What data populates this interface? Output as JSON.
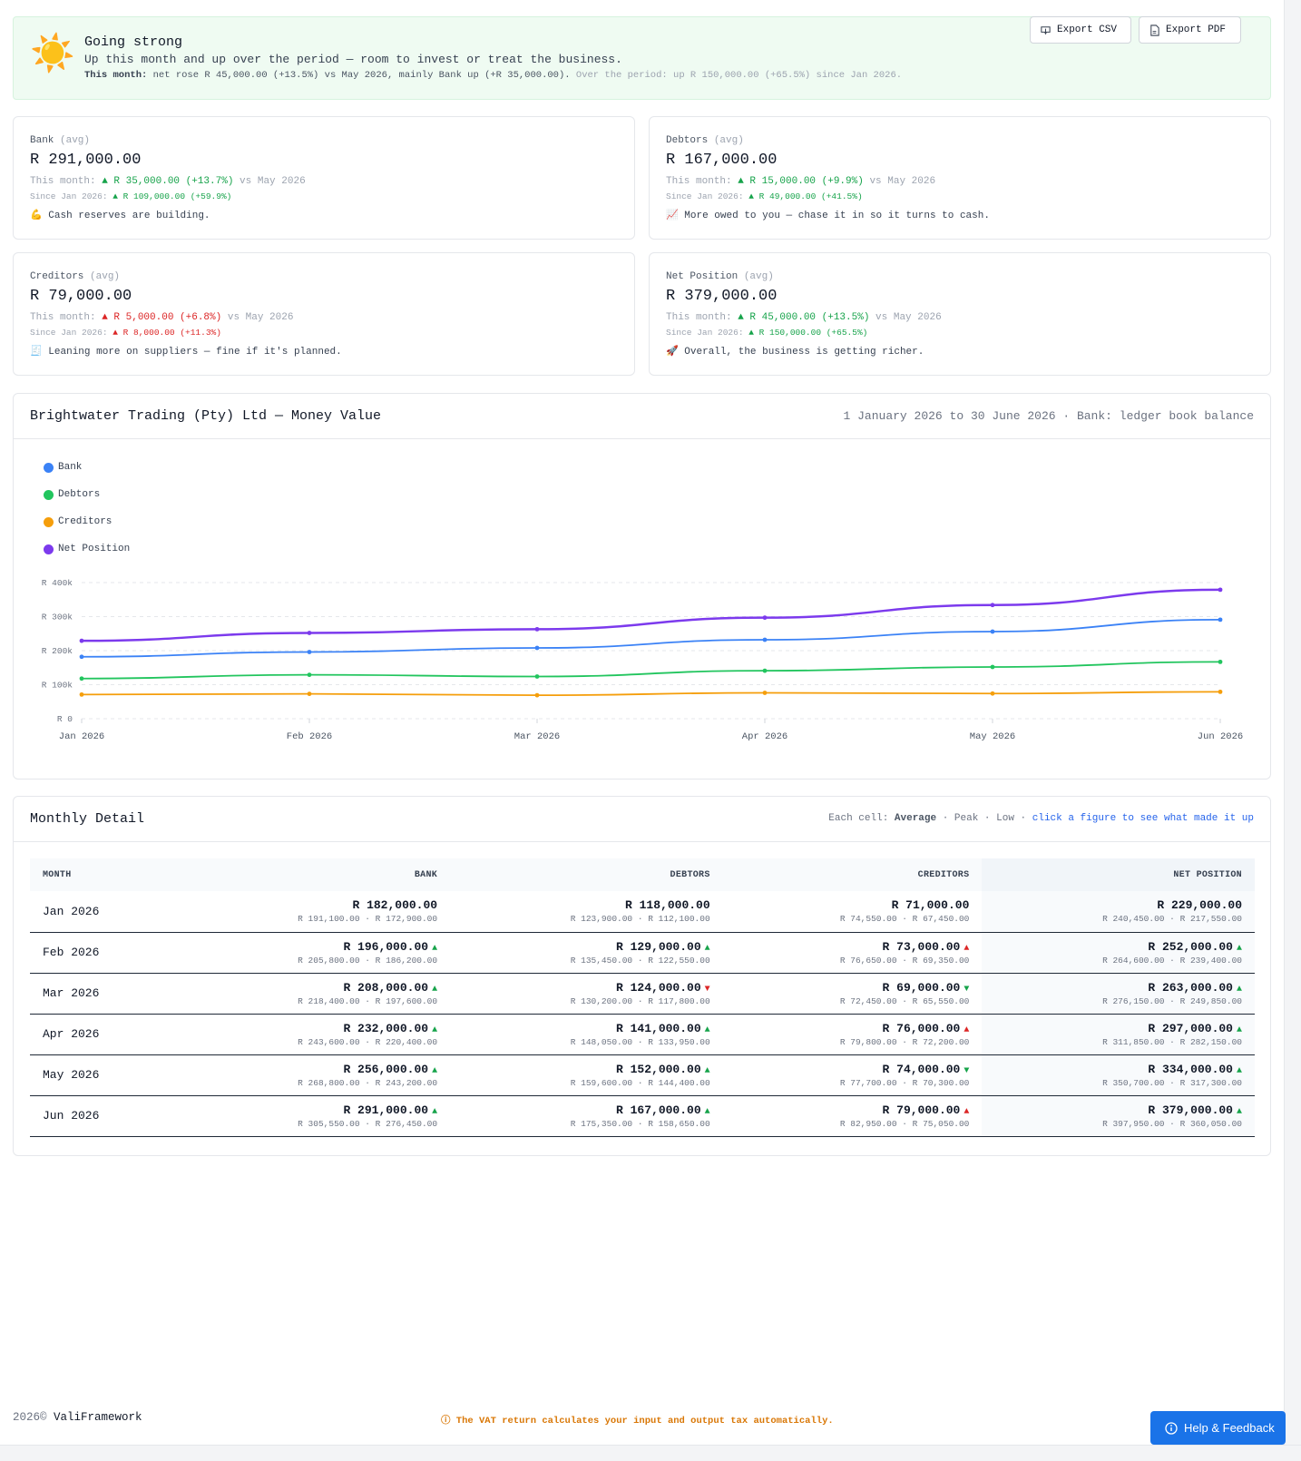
{
  "banner": {
    "icon": "sun-icon",
    "title": "Going strong",
    "subtitle": "Up this month and up over the period — room to invest or treat the business.",
    "detail_label": "This month:",
    "detail_text": " net rose R 45,000.00 (+13.5%) vs May 2026, mainly Bank up (+R 35,000.00).",
    "detail_period": " Over the period: up R 150,000.00 (+65.5%) since Jan 2026.",
    "export_csv": "Export CSV",
    "export_pdf": "Export PDF"
  },
  "cards": [
    {
      "label": "Bank",
      "label_suffix": " (avg)",
      "value": "R 291,000.00",
      "month_prefix": "This month: ",
      "month_change": "▲ R 35,000.00 (+13.7%)",
      "month_suffix": " vs May 2026",
      "month_dir": "up",
      "since_prefix": "Since Jan 2026: ",
      "since_change": "▲ R 109,000.00 (+59.9%)",
      "since_dir": "up",
      "note_emoji": "💪",
      "note": " Cash reserves are building."
    },
    {
      "label": "Debtors",
      "label_suffix": " (avg)",
      "value": "R 167,000.00",
      "month_prefix": "This month: ",
      "month_change": "▲ R 15,000.00 (+9.9%)",
      "month_suffix": " vs May 2026",
      "month_dir": "up",
      "since_prefix": "Since Jan 2026: ",
      "since_change": "▲ R 49,000.00 (+41.5%)",
      "since_dir": "up",
      "note_emoji": "📈",
      "note": " More owed to you — chase it in so it turns to cash."
    },
    {
      "label": "Creditors",
      "label_suffix": " (avg)",
      "value": "R 79,000.00",
      "month_prefix": "This month: ",
      "month_change": "▲ R 5,000.00 (+6.8%)",
      "month_suffix": " vs May 2026",
      "month_dir": "down",
      "since_prefix": "Since Jan 2026: ",
      "since_change": "▲ R 8,000.00 (+11.3%)",
      "since_dir": "down",
      "note_emoji": "🧾",
      "note": " Leaning more on suppliers — fine if it's planned."
    },
    {
      "label": "Net Position",
      "label_suffix": " (avg)",
      "value": "R 379,000.00",
      "month_prefix": "This month: ",
      "month_change": "▲ R 45,000.00 (+13.5%)",
      "month_suffix": " vs May 2026",
      "month_dir": "up",
      "since_prefix": "Since Jan 2026: ",
      "since_change": "▲ R 150,000.00 (+65.5%)",
      "since_dir": "up",
      "note_emoji": "🚀",
      "note": " Overall, the business is getting richer."
    }
  ],
  "chart_panel": {
    "title": "Brightwater Trading (Pty) Ltd — Money Value",
    "subtitle": "1 January 2026 to 30 June 2026 · Bank: ledger book balance"
  },
  "chart_data": {
    "type": "line",
    "x": [
      "Jan 2026",
      "Feb 2026",
      "Mar 2026",
      "Apr 2026",
      "May 2026",
      "Jun 2026"
    ],
    "series": [
      {
        "name": "Bank",
        "color": "#3b82f6",
        "values": [
          182000,
          196000,
          208000,
          232000,
          256000,
          291000
        ]
      },
      {
        "name": "Debtors",
        "color": "#22c55e",
        "values": [
          118000,
          129000,
          124000,
          141000,
          152000,
          167000
        ]
      },
      {
        "name": "Creditors",
        "color": "#f59e0b",
        "values": [
          71000,
          73000,
          69000,
          76000,
          74000,
          79000
        ]
      },
      {
        "name": "Net Position",
        "color": "#7c3aed",
        "values": [
          229000,
          252000,
          263000,
          297000,
          334000,
          379000
        ]
      }
    ],
    "y_ticks": [
      "R 0",
      "R 100k",
      "R 200k",
      "R 300k",
      "R 400k"
    ],
    "ylim": [
      0,
      400000
    ],
    "legend": "top-left",
    "grid": true
  },
  "table": {
    "title": "Monthly Detail",
    "sub_prefix": "Each cell: ",
    "sub_avg": "Average",
    "sub_rest": " · Peak · Low  · ",
    "sub_link": "click a figure to see what made it up",
    "headers": [
      "MONTH",
      "BANK",
      "DEBTORS",
      "CREDITORS",
      "NET POSITION"
    ],
    "rows": [
      {
        "month": "Jan 2026",
        "cells": [
          {
            "avg": "R 182,000.00",
            "dir": "",
            "range": "R 191,100.00 · R 172,900.00"
          },
          {
            "avg": "R 118,000.00",
            "dir": "",
            "range": "R 123,900.00 · R 112,100.00"
          },
          {
            "avg": "R 71,000.00",
            "dir": "",
            "range": "R 74,550.00 · R 67,450.00"
          },
          {
            "avg": "R 229,000.00",
            "dir": "",
            "range": "R 240,450.00 · R 217,550.00"
          }
        ]
      },
      {
        "month": "Feb 2026",
        "cells": [
          {
            "avg": "R 196,000.00",
            "dir": "up-good",
            "range": "R 205,800.00 · R 186,200.00"
          },
          {
            "avg": "R 129,000.00",
            "dir": "up-good",
            "range": "R 135,450.00 · R 122,550.00"
          },
          {
            "avg": "R 73,000.00",
            "dir": "up-bad",
            "range": "R 76,650.00 · R 69,350.00"
          },
          {
            "avg": "R 252,000.00",
            "dir": "up-good",
            "range": "R 264,600.00 · R 239,400.00"
          }
        ]
      },
      {
        "month": "Mar 2026",
        "cells": [
          {
            "avg": "R 208,000.00",
            "dir": "up-good",
            "range": "R 218,400.00 · R 197,600.00"
          },
          {
            "avg": "R 124,000.00",
            "dir": "down-bad",
            "range": "R 130,200.00 · R 117,800.00"
          },
          {
            "avg": "R 69,000.00",
            "dir": "down-good",
            "range": "R 72,450.00 · R 65,550.00"
          },
          {
            "avg": "R 263,000.00",
            "dir": "up-good",
            "range": "R 276,150.00 · R 249,850.00"
          }
        ]
      },
      {
        "month": "Apr 2026",
        "cells": [
          {
            "avg": "R 232,000.00",
            "dir": "up-good",
            "range": "R 243,600.00 · R 220,400.00"
          },
          {
            "avg": "R 141,000.00",
            "dir": "up-good",
            "range": "R 148,050.00 · R 133,950.00"
          },
          {
            "avg": "R 76,000.00",
            "dir": "up-bad",
            "range": "R 79,800.00 · R 72,200.00"
          },
          {
            "avg": "R 297,000.00",
            "dir": "up-good",
            "range": "R 311,850.00 · R 282,150.00"
          }
        ]
      },
      {
        "month": "May 2026",
        "cells": [
          {
            "avg": "R 256,000.00",
            "dir": "up-good",
            "range": "R 268,800.00 · R 243,200.00"
          },
          {
            "avg": "R 152,000.00",
            "dir": "up-good",
            "range": "R 159,600.00 · R 144,400.00"
          },
          {
            "avg": "R 74,000.00",
            "dir": "down-good",
            "range": "R 77,700.00 · R 70,300.00"
          },
          {
            "avg": "R 334,000.00",
            "dir": "up-good",
            "range": "R 350,700.00 · R 317,300.00"
          }
        ]
      },
      {
        "month": "Jun 2026",
        "cells": [
          {
            "avg": "R 291,000.00",
            "dir": "up-good",
            "range": "R 305,550.00 · R 276,450.00"
          },
          {
            "avg": "R 167,000.00",
            "dir": "up-good",
            "range": "R 175,350.00 · R 158,650.00"
          },
          {
            "avg": "R 79,000.00",
            "dir": "up-bad",
            "range": "R 82,950.00 · R 75,050.00"
          },
          {
            "avg": "R 379,000.00",
            "dir": "up-good",
            "range": "R 397,950.00 · R 360,050.00"
          }
        ]
      }
    ]
  },
  "footer": {
    "year": "2026©",
    "brand": " ValiFramework",
    "tip_icon": "ⓘ",
    "tip": " The VAT return calculates your input and output tax automatically.",
    "help_label": "Help & Feedback"
  }
}
